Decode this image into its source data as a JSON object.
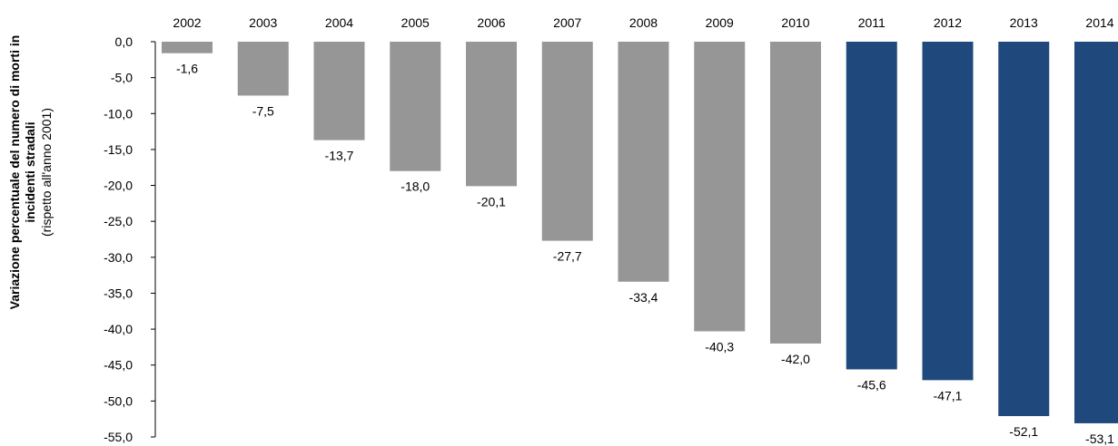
{
  "chart_data": {
    "type": "bar",
    "ylabel_lines": [
      "Variazione percentuale del numero di morti in",
      "incidenti stradali",
      "(rispetto all'anno 2001)"
    ],
    "categories": [
      "2002",
      "2003",
      "2004",
      "2005",
      "2006",
      "2007",
      "2008",
      "2009",
      "2010",
      "2011",
      "2012",
      "2013",
      "2014"
    ],
    "values": [
      -1.6,
      -7.5,
      -13.7,
      -18.0,
      -20.1,
      -27.7,
      -33.4,
      -40.3,
      -42.0,
      -45.6,
      -47.1,
      -52.1,
      -53.1
    ],
    "data_labels": [
      "-1,6",
      "-7,5",
      "-13,7",
      "-18,0",
      "-20,1",
      "-27,7",
      "-33,4",
      "-40,3",
      "-42,0",
      "-45,6",
      "-47,1",
      "-52,1",
      "-53,1"
    ],
    "ylim": [
      -55,
      0
    ],
    "y_ticks": [
      0,
      -5,
      -10,
      -15,
      -20,
      -25,
      -30,
      -35,
      -40,
      -45,
      -50,
      -55
    ],
    "y_tick_labels": [
      "0,0",
      "-5,0",
      "-10,0",
      "-15,0",
      "-20,0",
      "-25,0",
      "-30,0",
      "-35,0",
      "-40,0",
      "-45,0",
      "-50,0",
      "-55,0"
    ],
    "category_axis_position": "top",
    "grid": false,
    "legend": "none",
    "colors": {
      "grey_bars": "#969696",
      "blue_bars": "#1f497d",
      "axis": "#000000"
    },
    "highlight_from_category": "2011"
  }
}
